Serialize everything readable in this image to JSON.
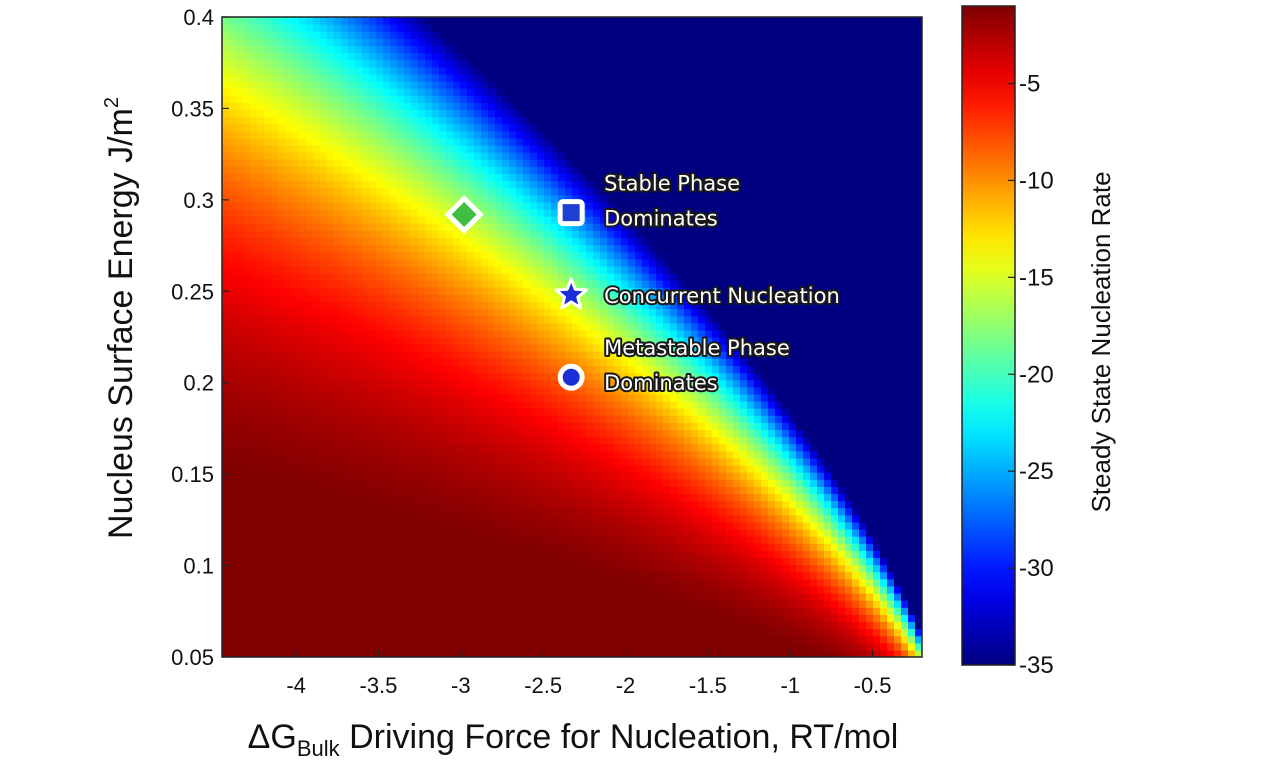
{
  "chart_data": {
    "type": "heatmap",
    "title": "",
    "xlabel_main": "ΔG",
    "xlabel_sub": "Bulk",
    "xlabel_rest": " Driving Force for Nucleation, RT/mol",
    "ylabel_main": "Nucleus Surface Energy J/m",
    "ylabel_sup": "2",
    "xlim": [
      -4.45,
      -0.2
    ],
    "ylim": [
      0.05,
      0.4
    ],
    "x_ticks": [
      -4,
      -3.5,
      -3,
      -2.5,
      -2,
      -1.5,
      -1,
      -0.5
    ],
    "x_tick_labels": [
      "-4",
      "-3.5",
      "-3",
      "-2.5",
      "-2",
      "-1.5",
      "-1",
      "-0.5"
    ],
    "y_ticks": [
      0.05,
      0.1,
      0.15,
      0.2,
      0.25,
      0.3,
      0.35,
      0.4
    ],
    "y_tick_labels": [
      "0.05",
      "0.1",
      "0.15",
      "0.2",
      "0.25",
      "0.3",
      "0.35",
      "0.4"
    ],
    "colorbar": {
      "label": "Steady State Nucleation Rate",
      "range": [
        -35,
        -1
      ],
      "ticks": [
        -35,
        -30,
        -25,
        -20,
        -15,
        -10,
        -5
      ],
      "tick_labels": [
        "-35",
        "-30",
        "-25",
        "-20",
        "-15",
        "-10",
        "-5"
      ],
      "colormap": "jet"
    },
    "markers": [
      {
        "shape": "diamond",
        "x": -2.98,
        "y": 0.292,
        "color": "#3fbf3f"
      },
      {
        "shape": "square",
        "x": -2.33,
        "y": 0.293,
        "color": "#1f3fd0"
      },
      {
        "shape": "star",
        "x": -2.33,
        "y": 0.248,
        "color": "#1a2fd8"
      },
      {
        "shape": "circle",
        "x": -2.33,
        "y": 0.203,
        "color": "#1a2fd8"
      }
    ],
    "annotations": [
      {
        "lines": [
          "Stable Phase",
          "Dominates"
        ],
        "x": -2.13,
        "y": 0.3
      },
      {
        "lines": [
          "Concurrent Nucleation"
        ],
        "x": -2.13,
        "y": 0.248
      },
      {
        "lines": [
          "Metastable Phase",
          "Dominates"
        ],
        "x": -2.13,
        "y": 0.21
      }
    ]
  }
}
